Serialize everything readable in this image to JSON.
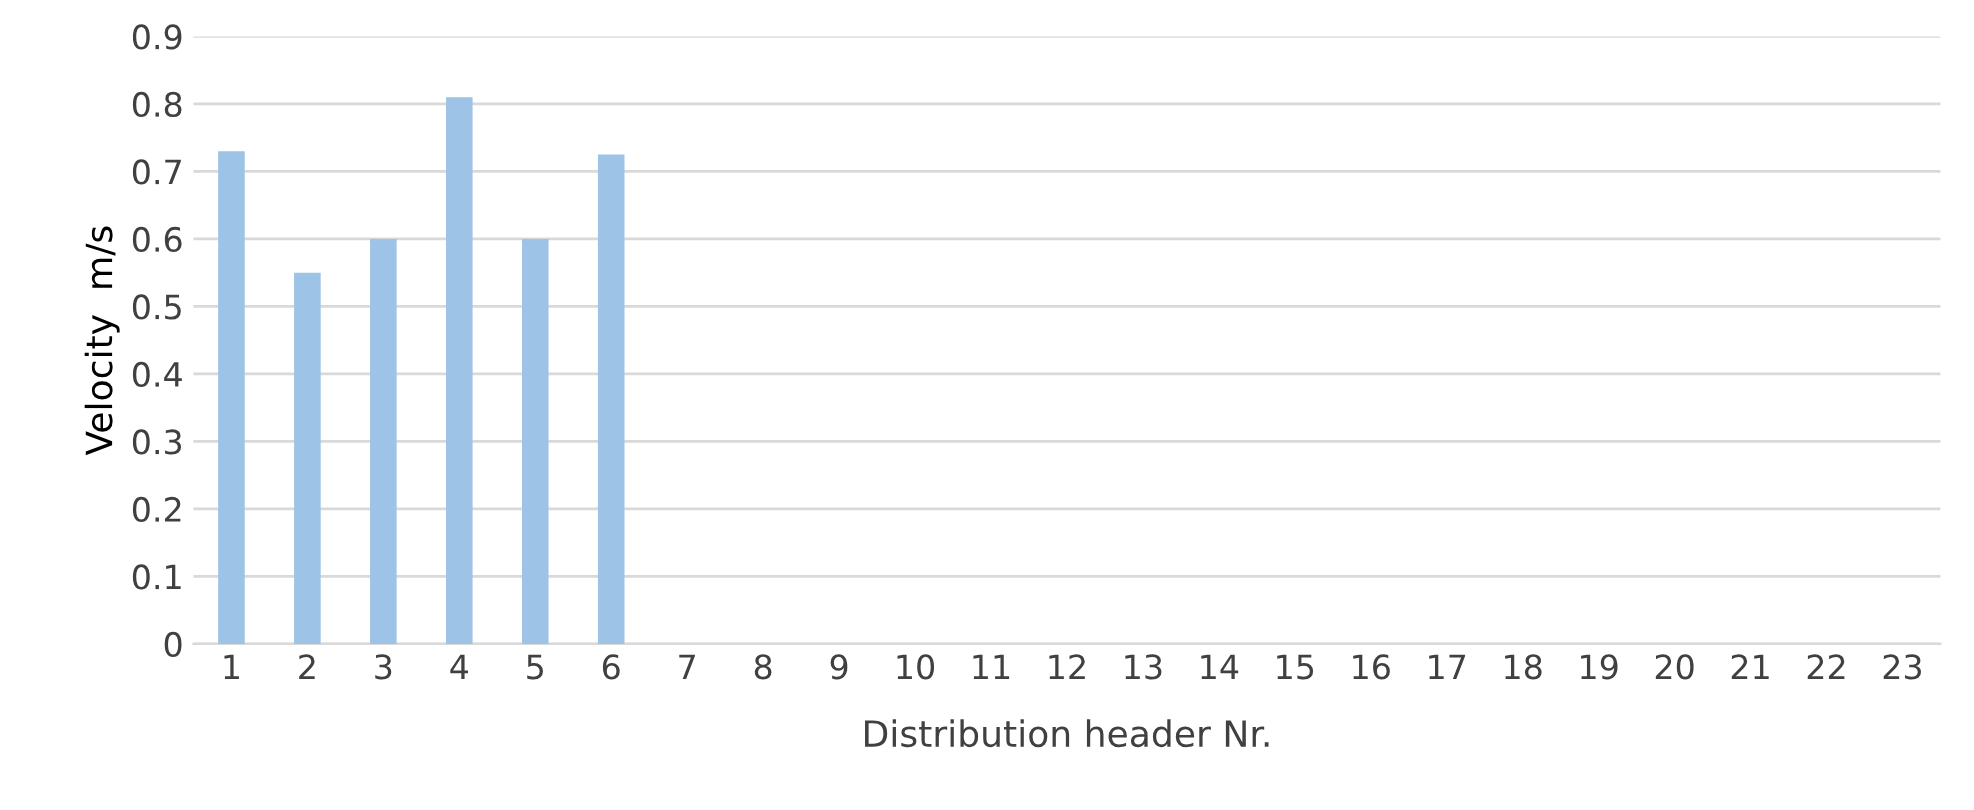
{
  "chart_data": {
    "type": "bar",
    "xlabel": "Distribution header Nr.",
    "ylabel": "Velocity  m/s",
    "categories": [
      "1",
      "2",
      "3",
      "4",
      "5",
      "6",
      "7",
      "8",
      "9",
      "10",
      "11",
      "12",
      "13",
      "14",
      "15",
      "16",
      "17",
      "18",
      "19",
      "20",
      "21",
      "22",
      "23"
    ],
    "values": [
      0.73,
      0.55,
      0.6,
      0.81,
      0.6,
      0.725,
      null,
      null,
      null,
      null,
      null,
      null,
      null,
      null,
      null,
      null,
      null,
      null,
      null,
      null,
      null,
      null,
      null
    ],
    "color": "#9dc3e6",
    "ylim": [
      0,
      0.9
    ],
    "yticks": [
      0,
      0.1,
      0.2,
      0.3,
      0.4,
      0.5,
      0.6,
      0.7,
      0.8,
      0.9
    ],
    "grid": "y",
    "legend": false
  }
}
